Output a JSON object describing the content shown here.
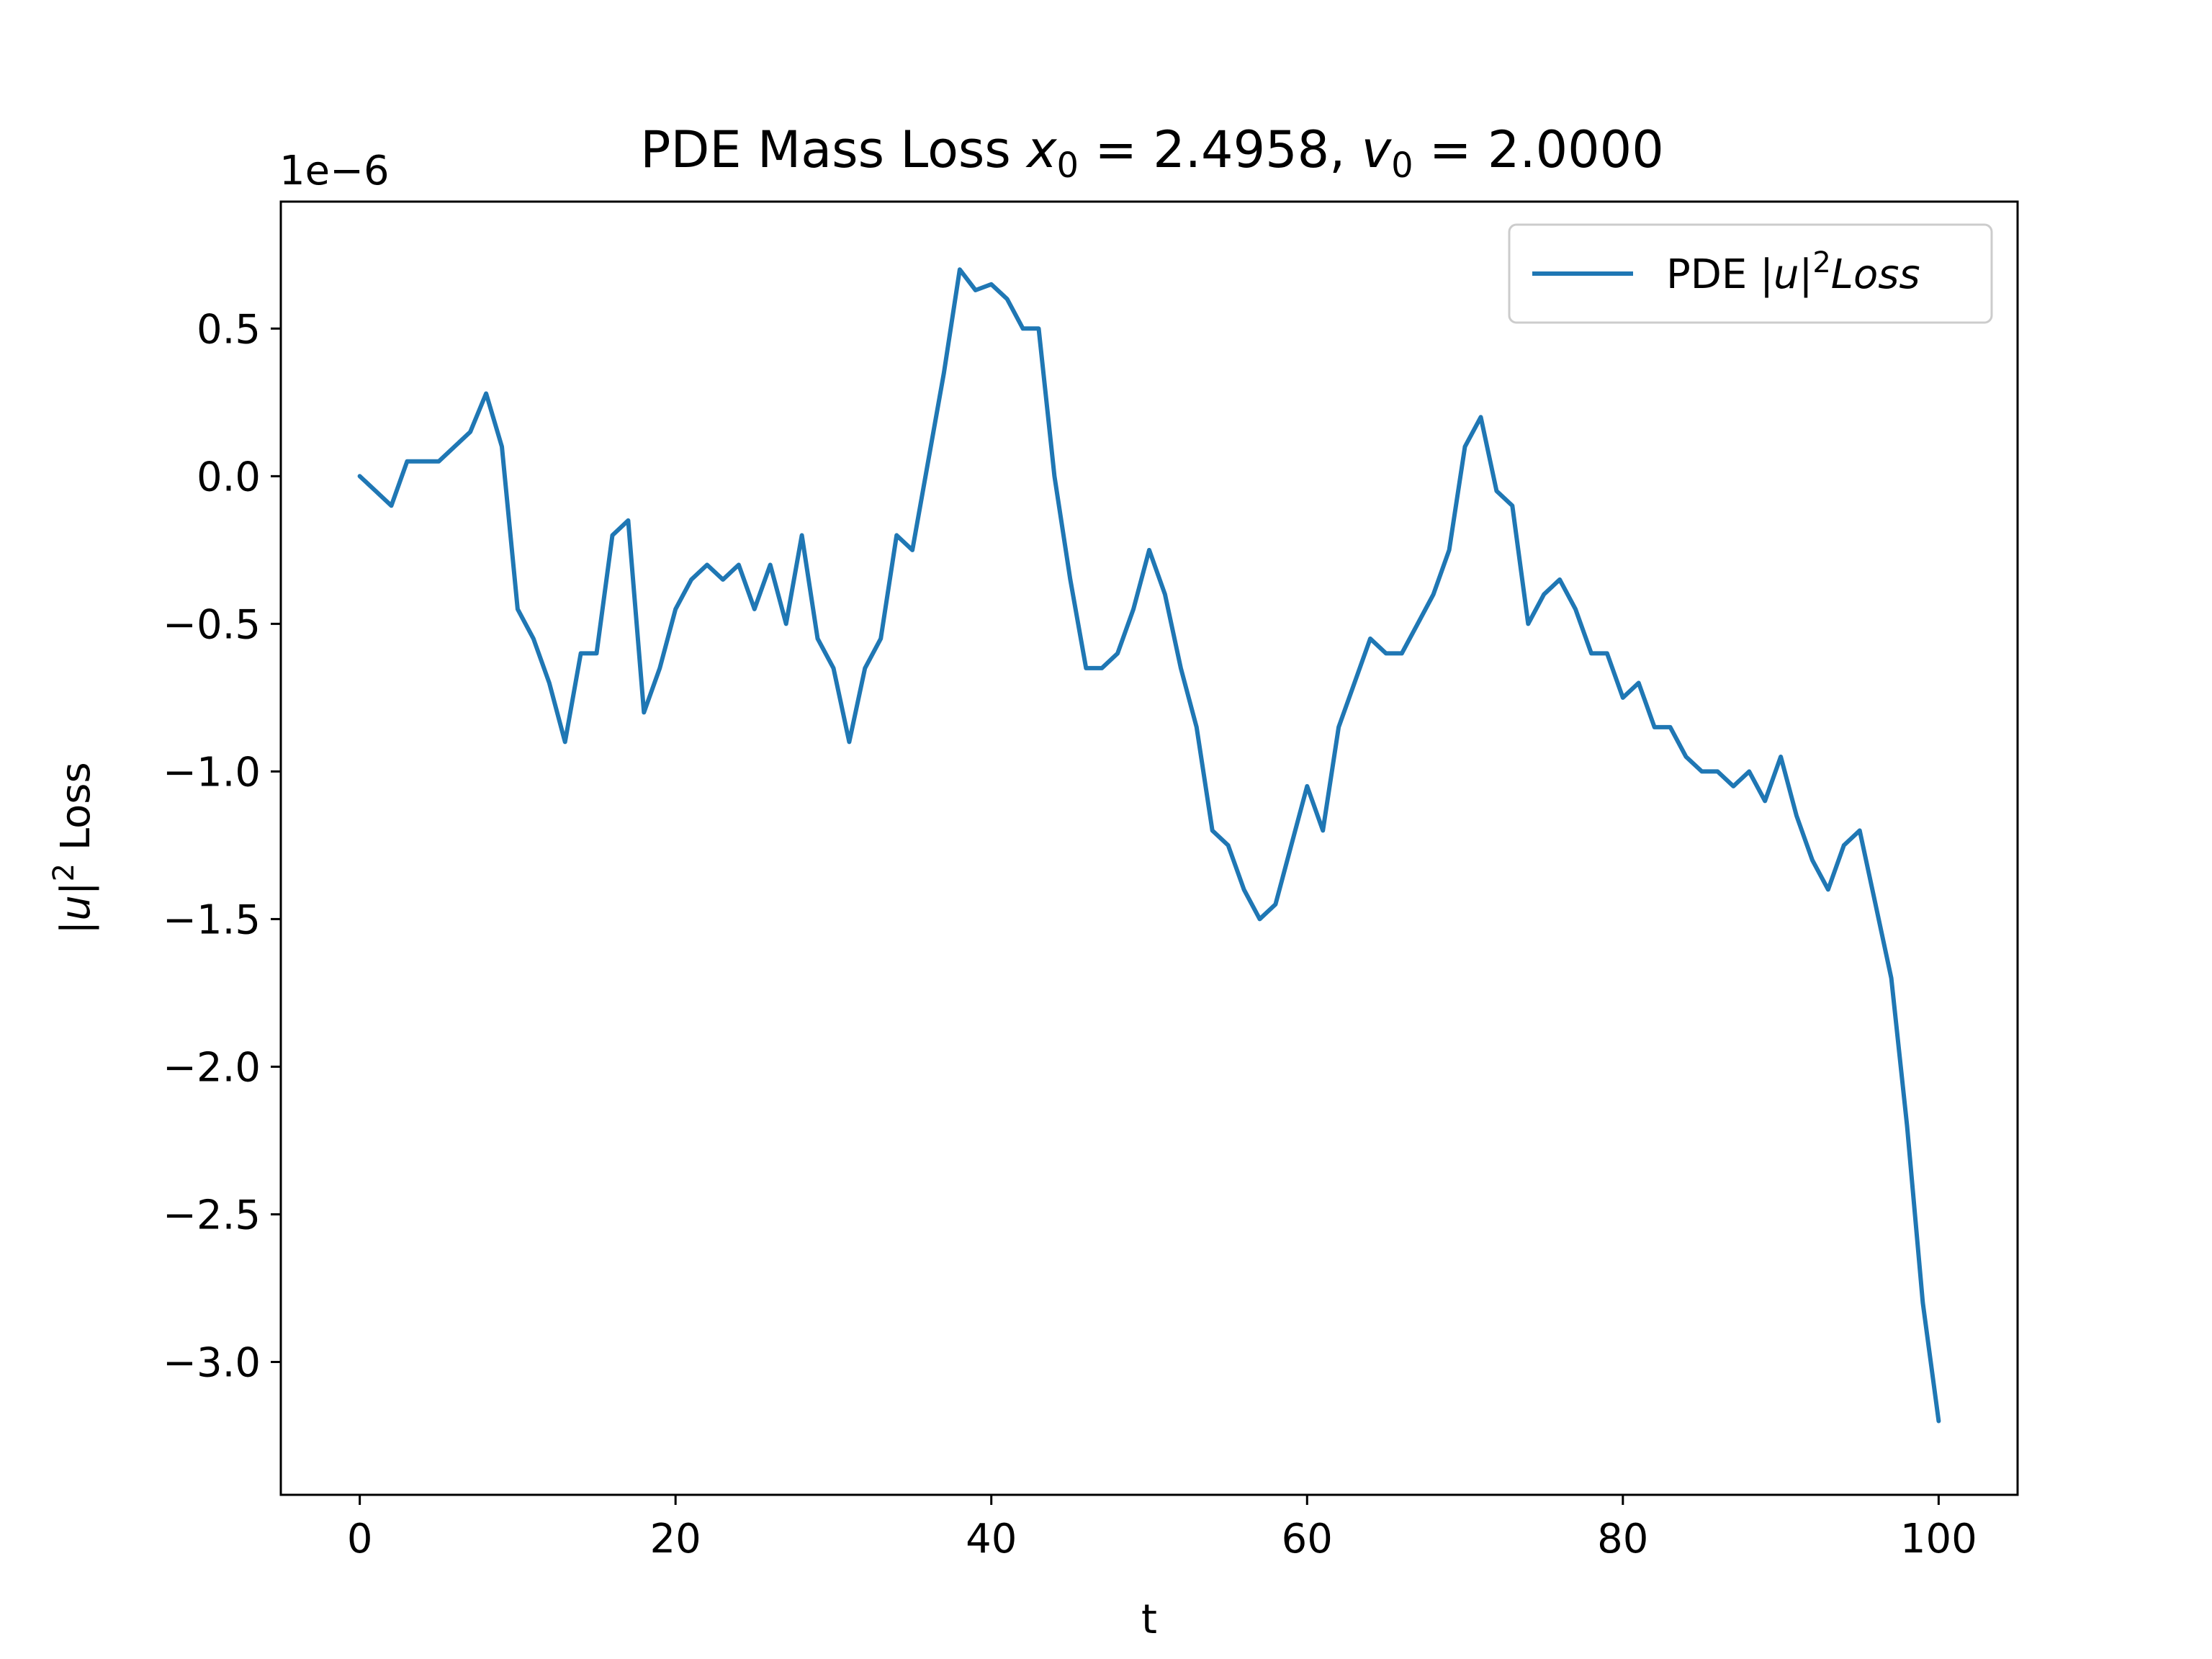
{
  "chart_data": {
    "type": "line",
    "title": {
      "prefix": "PDE Mass Loss ",
      "x0_symbol": "x",
      "x0_sub": "0",
      "x0_value": " = 2.4958, ",
      "v0_symbol": "v",
      "v0_sub": "0",
      "v0_value": " = 2.0000"
    },
    "xlabel": "t",
    "ylabel": {
      "bar_left": "|",
      "var": "u",
      "bar_right": "|",
      "sup": "2",
      "rest": " Loss"
    },
    "offset_text": "1e−6",
    "xlim": [
      -5,
      105
    ],
    "ylim": [
      -3.45,
      0.93
    ],
    "x_ticks": [
      0,
      20,
      40,
      60,
      80,
      100
    ],
    "x_tick_labels": [
      "0",
      "20",
      "40",
      "60",
      "80",
      "100"
    ],
    "y_ticks": [
      0.5,
      0.0,
      -0.5,
      -1.0,
      -1.5,
      -2.0,
      -2.5,
      -3.0
    ],
    "y_tick_labels": [
      "0.5",
      "0.0",
      "−0.5",
      "−1.0",
      "−1.5",
      "−2.0",
      "−2.5",
      "−3.0"
    ],
    "y_scale": "1e-6",
    "grid": false,
    "legend_position": "top-right",
    "legend": {
      "prefix": "PDE ",
      "bar_left": "|",
      "var": "u",
      "bar_right": "|",
      "sup": "2",
      "italic_rest": "Loss"
    },
    "series": [
      {
        "name": "PDE |u|^2 Loss",
        "color": "#1f77b4",
        "x": [
          0,
          1,
          2,
          3,
          4,
          5,
          6,
          7,
          8,
          9,
          10,
          11,
          12,
          13,
          14,
          15,
          16,
          17,
          18,
          19,
          20,
          21,
          22,
          23,
          24,
          25,
          26,
          27,
          28,
          29,
          30,
          31,
          32,
          33,
          34,
          35,
          36,
          37,
          38,
          39,
          40,
          41,
          42,
          43,
          44,
          45,
          46,
          47,
          48,
          49,
          50,
          51,
          52,
          53,
          54,
          55,
          56,
          57,
          58,
          59,
          60,
          61,
          62,
          63,
          64,
          65,
          66,
          67,
          68,
          69,
          70,
          71,
          72,
          73,
          74,
          75,
          76,
          77,
          78,
          79,
          80,
          81,
          82,
          83,
          84,
          85,
          86,
          87,
          88,
          89,
          90,
          91,
          92,
          93,
          94,
          95,
          96,
          97,
          98,
          99,
          100
        ],
        "y": [
          0.0,
          -0.05,
          -0.1,
          0.05,
          0.05,
          0.05,
          0.1,
          0.15,
          0.28,
          0.1,
          -0.45,
          -0.55,
          -0.7,
          -0.9,
          -0.6,
          -0.6,
          -0.2,
          -0.15,
          -0.8,
          -0.65,
          -0.45,
          -0.35,
          -0.3,
          -0.35,
          -0.3,
          -0.45,
          -0.3,
          -0.5,
          -0.2,
          -0.55,
          -0.65,
          -0.9,
          -0.65,
          -0.55,
          -0.2,
          -0.25,
          0.05,
          0.35,
          0.7,
          0.63,
          0.65,
          0.6,
          0.5,
          0.5,
          0.0,
          -0.35,
          -0.65,
          -0.65,
          -0.6,
          -0.45,
          -0.25,
          -0.4,
          -0.65,
          -0.85,
          -1.2,
          -1.25,
          -1.4,
          -1.5,
          -1.45,
          -1.25,
          -1.05,
          -1.2,
          -0.85,
          -0.7,
          -0.55,
          -0.6,
          -0.6,
          -0.5,
          -0.4,
          -0.25,
          0.1,
          0.2,
          -0.05,
          -0.1,
          -0.5,
          -0.4,
          -0.35,
          -0.45,
          -0.6,
          -0.6,
          -0.75,
          -0.7,
          -0.85,
          -0.85,
          -0.95,
          -1.0,
          -1.0,
          -1.05,
          -1.0,
          -1.1,
          -0.95,
          -1.15,
          -1.3,
          -1.4,
          -1.25,
          -1.2,
          -1.45,
          -1.7,
          -2.2,
          -2.8,
          -3.2
        ]
      }
    ]
  }
}
